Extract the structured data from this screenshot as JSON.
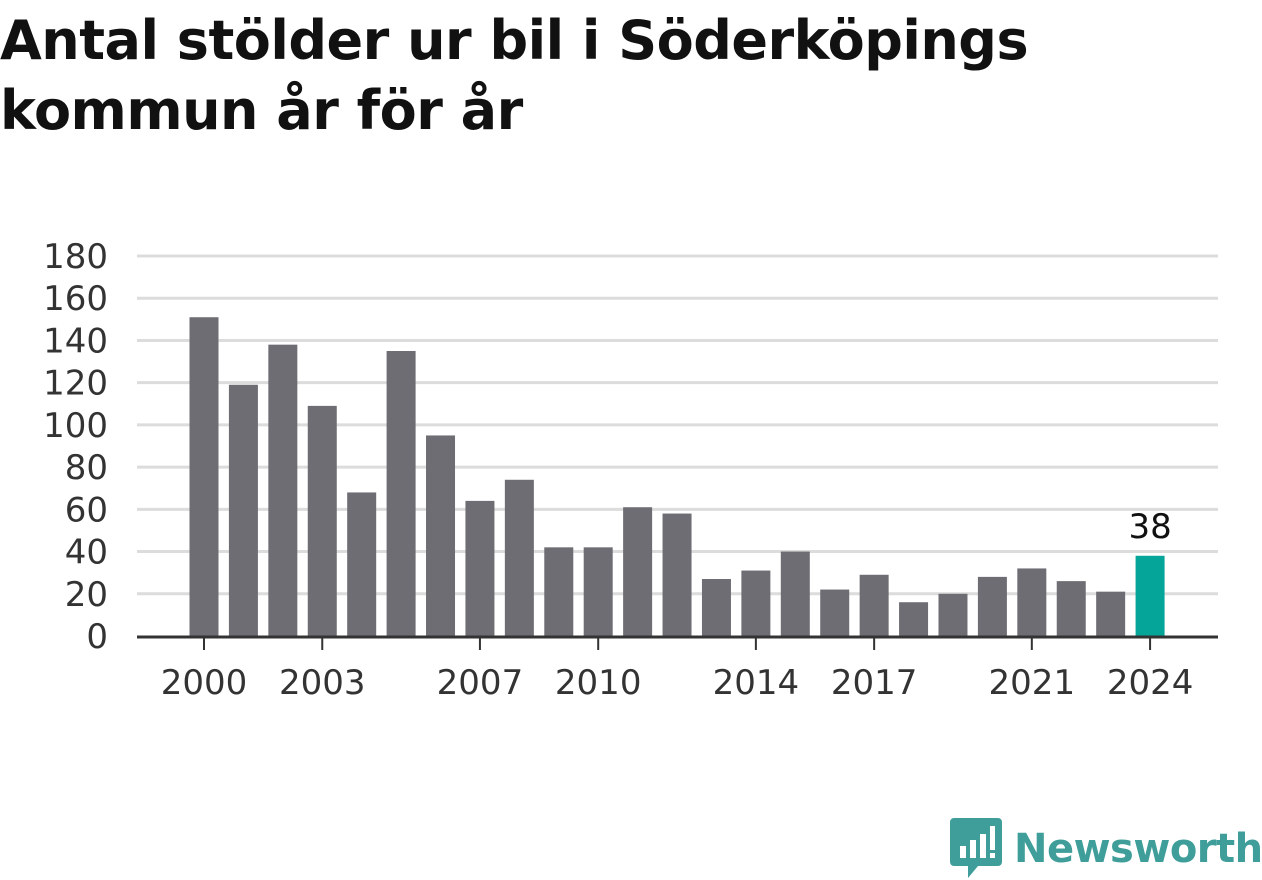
{
  "title_line1": "Antal stölder ur bil i Söderköpings",
  "title_line2": "kommun år för år",
  "brand": "Newsworthy",
  "colors": {
    "bar": "#6e6d73",
    "highlight": "#06a59a",
    "grid": "#dcdcdc",
    "axis": "#333333",
    "brand": "#3f9e9a"
  },
  "chart_data": {
    "type": "bar",
    "categories": [
      2000,
      2001,
      2002,
      2003,
      2004,
      2005,
      2006,
      2007,
      2008,
      2009,
      2010,
      2011,
      2012,
      2013,
      2014,
      2015,
      2016,
      2017,
      2018,
      2019,
      2020,
      2021,
      2022,
      2023,
      2024
    ],
    "values": [
      151,
      119,
      138,
      109,
      68,
      135,
      95,
      64,
      74,
      42,
      42,
      61,
      58,
      27,
      31,
      40,
      22,
      29,
      16,
      20,
      28,
      32,
      26,
      21,
      38
    ],
    "x_tick_labels": [
      "2000",
      "2003",
      "2007",
      "2010",
      "2014",
      "2017",
      "2021",
      "2024"
    ],
    "y_tick_labels": [
      "0",
      "20",
      "40",
      "60",
      "80",
      "100",
      "120",
      "140",
      "160",
      "180"
    ],
    "ylim": [
      0,
      180
    ],
    "highlight_category": 2024,
    "data_labels": [
      {
        "category": 2024,
        "text": "38"
      }
    ],
    "grid": true,
    "title": "Antal stölder ur bil i Söderköpings kommun år för år"
  }
}
